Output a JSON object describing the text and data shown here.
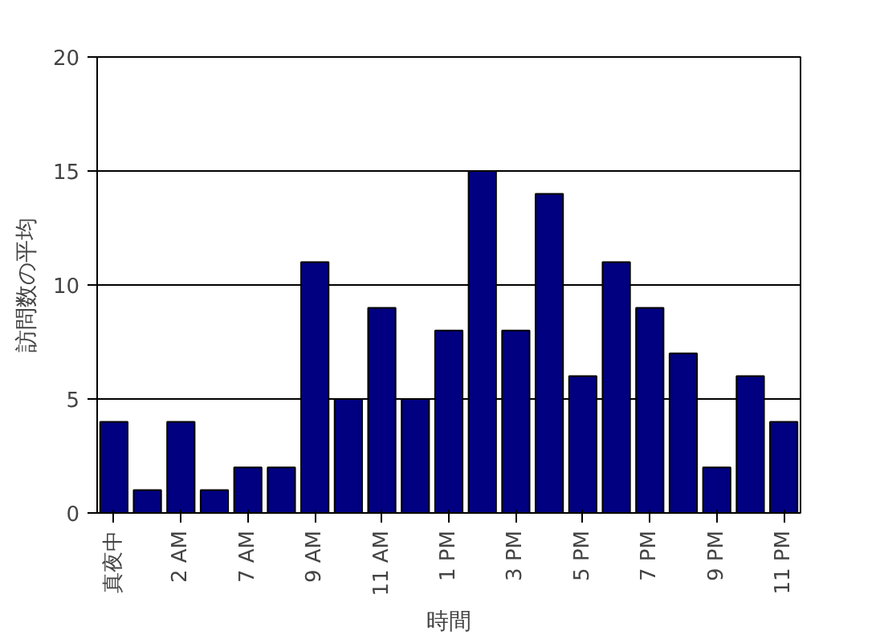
{
  "chart_data": {
    "type": "bar",
    "xlabel": "時間",
    "ylabel": "訪問数の平均",
    "categories": [
      "真夜中",
      null,
      "2 AM",
      null,
      "7 AM",
      null,
      "9 AM",
      null,
      "11 AM",
      null,
      "1 PM",
      null,
      "3 PM",
      null,
      "5 PM",
      null,
      "7 PM",
      null,
      "9 PM",
      null,
      "11 PM"
    ],
    "values": [
      4,
      1,
      4,
      1,
      2,
      2,
      11,
      5,
      9,
      5,
      8,
      15,
      8,
      14,
      6,
      11,
      9,
      7,
      2,
      6,
      4
    ],
    "color": "#000080",
    "ylim": [
      0,
      20
    ],
    "yticks": [
      0,
      5,
      10,
      15,
      20
    ],
    "grid": "y"
  }
}
